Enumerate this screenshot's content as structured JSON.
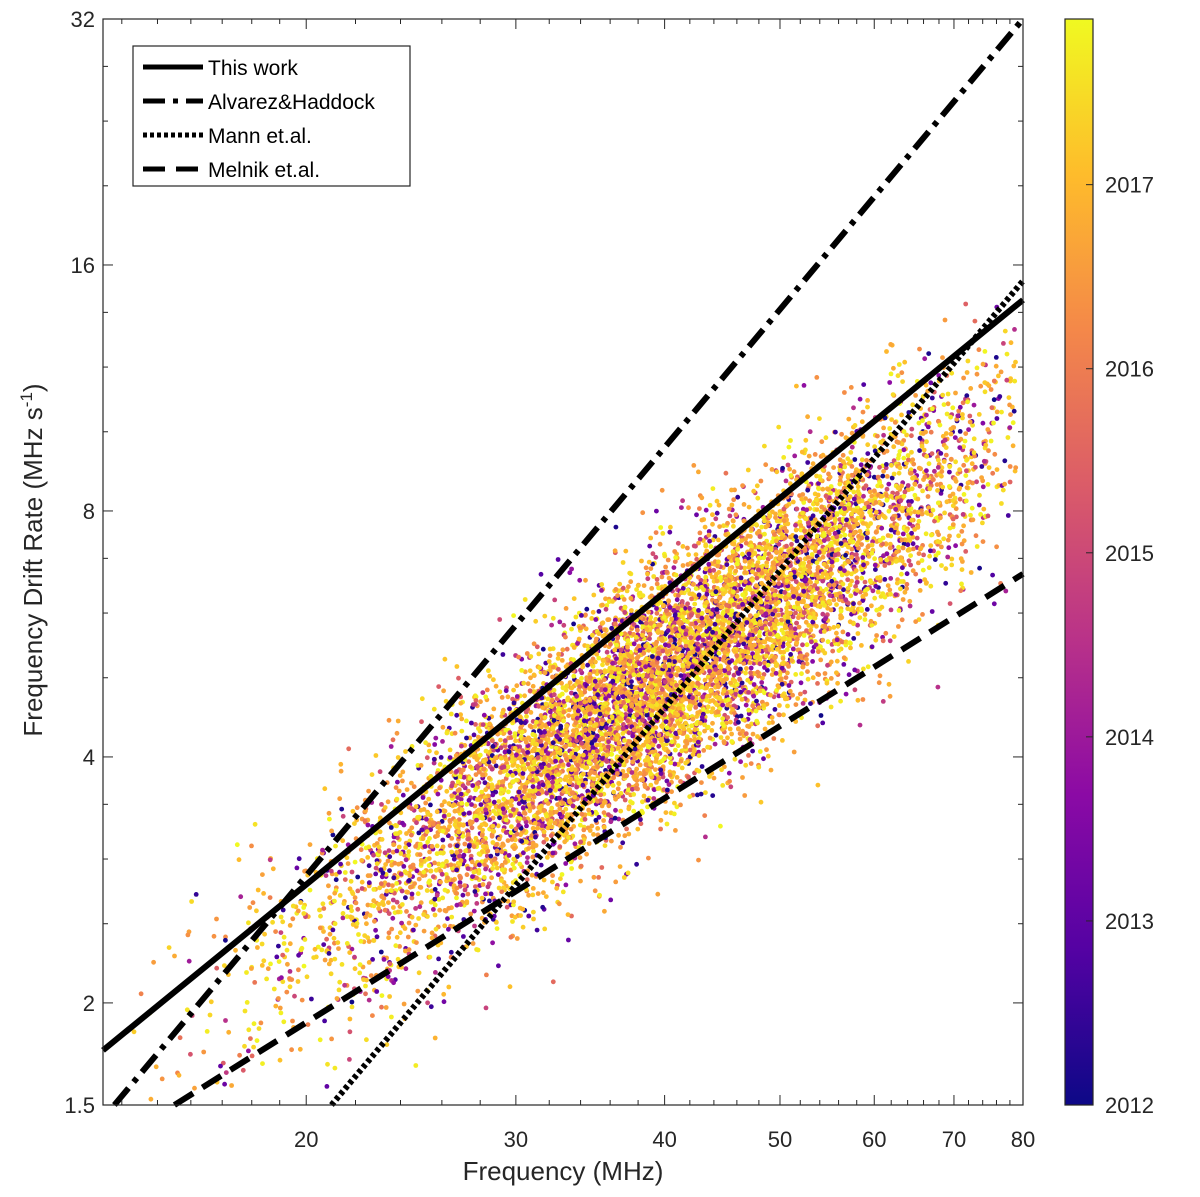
{
  "chart_data": {
    "type": "scatter",
    "title": "",
    "xlabel": "Frequency (MHz)",
    "ylabel_main": "Frequency Drift Rate (MHz s",
    "ylabel_sup": "-1",
    "ylabel_close": ")",
    "x_scale": "log",
    "y_scale": "log",
    "xlim": [
      13.5,
      80
    ],
    "ylim": [
      1.5,
      32
    ],
    "x_ticks": [
      20,
      30,
      40,
      50,
      60,
      70,
      80
    ],
    "x_tick_labels": [
      "20",
      "30",
      "40",
      "50",
      "60",
      "70",
      "80"
    ],
    "y_ticks": [
      1.5,
      2,
      4,
      8,
      16,
      32
    ],
    "y_tick_labels": [
      "1.5",
      "2",
      "4",
      "8",
      "16",
      "32"
    ],
    "legend_position": "top-left",
    "series": [
      {
        "name": "This work",
        "style": "solid",
        "x": [
          13.5,
          80
        ],
        "y": [
          1.75,
          14.5
        ]
      },
      {
        "name": "Alvarez&Haddock",
        "style": "dashdot",
        "x": [
          13.8,
          80
        ],
        "y": [
          1.5,
          32
        ]
      },
      {
        "name": "Mann et.al.",
        "style": "dotted",
        "x": [
          21,
          80
        ],
        "y": [
          1.5,
          15.3
        ]
      },
      {
        "name": "Melnik et.al.",
        "style": "dashed",
        "x": [
          15.5,
          80
        ],
        "y": [
          1.5,
          6.7
        ]
      }
    ],
    "scatter": {
      "description": "dense cloud of burst measurements colored by year",
      "center_x": 40,
      "center_y": 5.0,
      "points_approx": 9000
    },
    "colorbar": {
      "label_values": [
        2012,
        2013,
        2014,
        2015,
        2016,
        2017
      ],
      "labels": [
        "2012",
        "2013",
        "2014",
        "2015",
        "2016",
        "2017"
      ],
      "range": [
        2012,
        2017.9
      ],
      "colormap": "plasma"
    }
  }
}
